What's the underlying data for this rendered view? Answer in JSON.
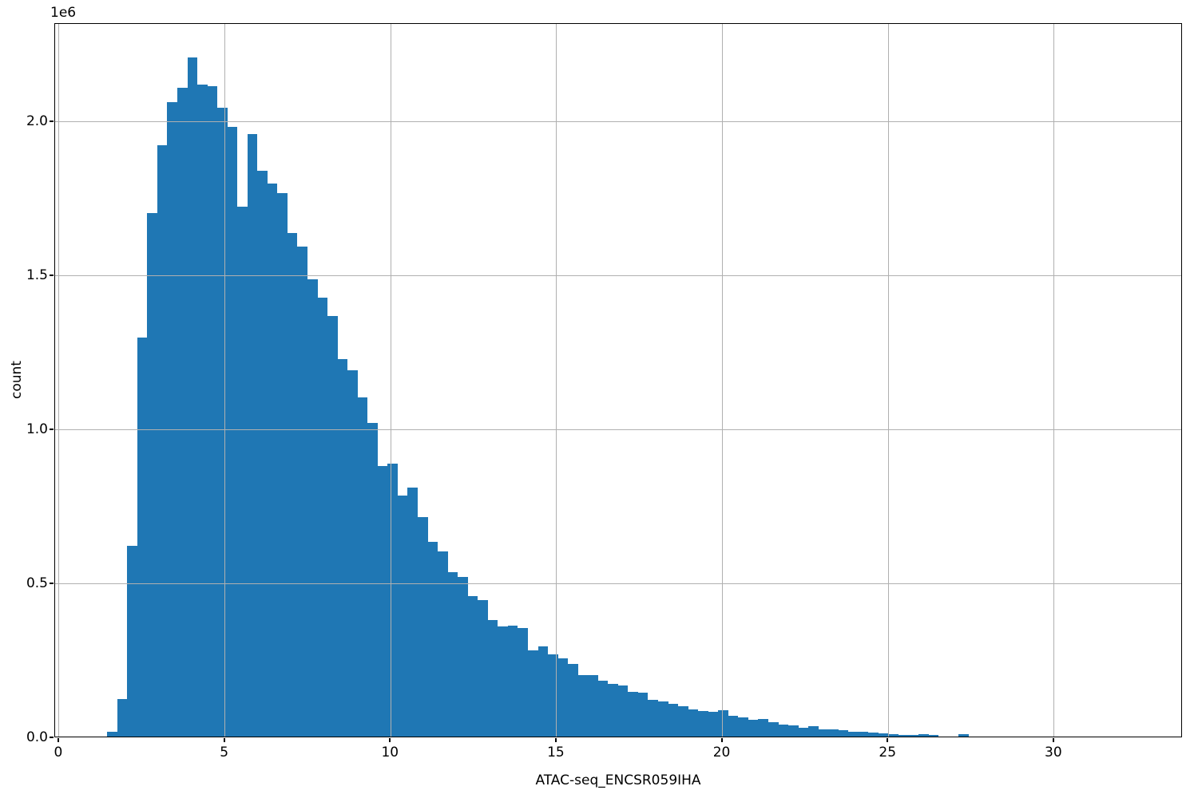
{
  "figure": {
    "background": "#ffffff"
  },
  "chart_data": {
    "type": "bar",
    "subtype": "histogram",
    "title": "",
    "xlabel": "ATAC-seq_ENCSR059IHA",
    "ylabel": "count",
    "offset_text": "1e6",
    "legend_position": "none",
    "grid": true,
    "grid_on_top_of_bars": true,
    "bar_color": "#1f77b4",
    "grid_color": "#b0b0b0",
    "spine_color": "#000000",
    "text_color": "#000000",
    "xlim": [
      -0.12,
      33.88
    ],
    "ylim": [
      0,
      2318000
    ],
    "x_ticks": [
      0,
      5,
      10,
      15,
      20,
      25,
      30
    ],
    "x_tick_labels": [
      "0",
      "5",
      "10",
      "15",
      "20",
      "25",
      "30"
    ],
    "y_ticks": [
      0,
      500000,
      1000000,
      1500000,
      2000000
    ],
    "y_tick_labels": [
      "0.0",
      "0.5",
      "1.0",
      "1.5",
      "2.0"
    ],
    "bins": {
      "start": 1.45,
      "width": 0.302
    },
    "counts": [
      15000,
      122000,
      620000,
      1295000,
      1700000,
      1920000,
      2060000,
      2105000,
      2205000,
      2115000,
      2110000,
      2040000,
      1980000,
      1720000,
      1955000,
      1835000,
      1795000,
      1765000,
      1635000,
      1590000,
      1485000,
      1425000,
      1365000,
      1225000,
      1190000,
      1100000,
      1018000,
      879000,
      885000,
      783000,
      809000,
      712000,
      633000,
      600000,
      533000,
      518000,
      455000,
      443000,
      377000,
      357000,
      360000,
      351000,
      279000,
      292000,
      267000,
      253000,
      236000,
      199000,
      199000,
      182000,
      170000,
      165000,
      144000,
      143000,
      118000,
      115000,
      106000,
      99000,
      89000,
      84000,
      80000,
      86000,
      67000,
      63000,
      54000,
      58000,
      46000,
      39000,
      35500,
      28500,
      34000,
      23000,
      22500,
      20000,
      15500,
      15500,
      12000,
      10000,
      8000,
      5500,
      4500,
      6500,
      6000,
      1000,
      800,
      6500
    ]
  }
}
